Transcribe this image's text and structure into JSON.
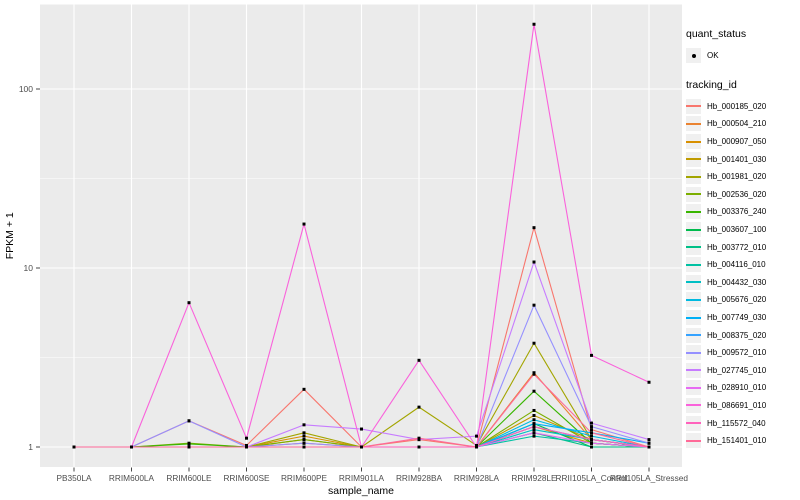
{
  "figure": {
    "y_axis": {
      "label": "FPKM + 1",
      "scale": "log10",
      "tick_labels": [
        "1",
        "10",
        "100"
      ]
    },
    "x_axis": {
      "label": "sample_name"
    },
    "legend": {
      "quant_title": "quant_status",
      "quant_items": [
        {
          "label": "OK",
          "marker": "black-point"
        }
      ],
      "tracking_title": "tracking_id"
    },
    "colors": {
      "panel_bg": "#EBEBEB",
      "grid": "#FFFFFF",
      "tick_text": "#4D4D4D",
      "point": "#000000"
    }
  },
  "chart_data": {
    "type": "line",
    "x": [
      "PB350LA",
      "RRIM600LA",
      "RRIM600LE",
      "RRIM600SE",
      "RRIM600PE",
      "RRIM901LA",
      "RRIM928BA",
      "RRIM928LA",
      "RRIM928LE",
      "RRII105LA_Control",
      "RRII105LA_Stressed"
    ],
    "xlabel": "sample_name",
    "ylabel": "FPKM + 1",
    "yscale": "log10",
    "ylim": [
      1,
      300
    ],
    "y_major_ticks": [
      1,
      10,
      100
    ],
    "y_minor_ticks": [
      3.162,
      31.62
    ],
    "grid": true,
    "legend_position": "right",
    "point_marker": "black-square",
    "series": [
      {
        "name": "Hb_000185_020",
        "color": "#F8766D",
        "values": [
          1,
          1,
          1.4,
          1.02,
          2.1,
          1,
          1.1,
          1,
          16.8,
          1.25,
          1
        ]
      },
      {
        "name": "Hb_000504_210",
        "color": "#EA8331",
        "values": [
          1,
          1,
          1,
          1,
          1.05,
          1,
          1,
          1,
          2.6,
          1.1,
          1
        ]
      },
      {
        "name": "Hb_000907_050",
        "color": "#D89000",
        "values": [
          1,
          1,
          1,
          1,
          1.15,
          1,
          1,
          1,
          1.3,
          1.05,
          1
        ]
      },
      {
        "name": "Hb_001401_030",
        "color": "#C09B00",
        "values": [
          1,
          1,
          1,
          1,
          1.1,
          1,
          1,
          1,
          1.5,
          1.1,
          1
        ]
      },
      {
        "name": "Hb_001981_020",
        "color": "#A3A500",
        "values": [
          1,
          1,
          1,
          1,
          1.2,
          1,
          1.67,
          1.02,
          3.8,
          1.1,
          1
        ]
      },
      {
        "name": "Hb_002536_020",
        "color": "#7CAE00",
        "values": [
          1,
          1,
          1.05,
          1,
          1.1,
          1,
          1,
          1,
          1.6,
          1.05,
          1
        ]
      },
      {
        "name": "Hb_003376_240",
        "color": "#39B600",
        "values": [
          1,
          1,
          1.04,
          1,
          1,
          1,
          1,
          1,
          2.05,
          1.05,
          1
        ]
      },
      {
        "name": "Hb_003607_100",
        "color": "#00BB4E",
        "values": [
          1,
          1,
          1,
          1,
          1,
          1,
          1,
          1,
          1.35,
          1,
          1
        ]
      },
      {
        "name": "Hb_003772_010",
        "color": "#00C087",
        "values": [
          1,
          1,
          1,
          1,
          1,
          1,
          1,
          1,
          1.2,
          1,
          1
        ]
      },
      {
        "name": "Hb_004116_010",
        "color": "#00C1A3",
        "values": [
          1,
          1,
          1,
          1,
          1,
          1,
          1,
          1,
          1.15,
          1.05,
          1
        ]
      },
      {
        "name": "Hb_004432_030",
        "color": "#00BFC4",
        "values": [
          1,
          1,
          1,
          1,
          1,
          1,
          1,
          1,
          1.25,
          1.1,
          1
        ]
      },
      {
        "name": "Hb_005676_020",
        "color": "#00BAE0",
        "values": [
          1,
          1,
          1,
          1,
          1,
          1,
          1,
          1,
          1.42,
          1.15,
          1
        ]
      },
      {
        "name": "Hb_007749_030",
        "color": "#00B0F6",
        "values": [
          1,
          1,
          1,
          1,
          1,
          1,
          1,
          1,
          1.35,
          1.2,
          1.05
        ]
      },
      {
        "name": "Hb_008375_020",
        "color": "#35A2FF",
        "values": [
          1,
          1,
          1,
          1,
          1,
          1,
          1,
          1,
          1.3,
          1.1,
          1
        ]
      },
      {
        "name": "Hb_009572_010",
        "color": "#9590FF",
        "values": [
          1,
          1,
          1.4,
          1,
          1.05,
          1,
          1,
          1,
          6.2,
          1.3,
          1.05
        ]
      },
      {
        "name": "Hb_027745_010",
        "color": "#C77CFF",
        "values": [
          1,
          1,
          1,
          1,
          1.33,
          1.26,
          1.1,
          1.15,
          10.8,
          1.36,
          1.1
        ]
      },
      {
        "name": "Hb_028910_010",
        "color": "#E76BF3",
        "values": [
          1,
          1,
          1,
          1,
          1,
          1,
          1,
          1,
          1.2,
          1.05,
          1
        ]
      },
      {
        "name": "Hb_086691_010",
        "color": "#FA62DB",
        "values": [
          1,
          1,
          6.4,
          1.12,
          17.6,
          1,
          3.05,
          1,
          230,
          3.25,
          2.3
        ]
      },
      {
        "name": "Hb_115572_040",
        "color": "#FF62BC",
        "values": [
          1,
          1,
          1,
          1,
          1,
          1,
          1,
          1,
          1.3,
          1.1,
          1
        ]
      },
      {
        "name": "Hb_151401_010",
        "color": "#FF6A98",
        "values": [
          1,
          1,
          1,
          1,
          1,
          1,
          1.12,
          1,
          2.55,
          1.2,
          1
        ]
      }
    ]
  }
}
